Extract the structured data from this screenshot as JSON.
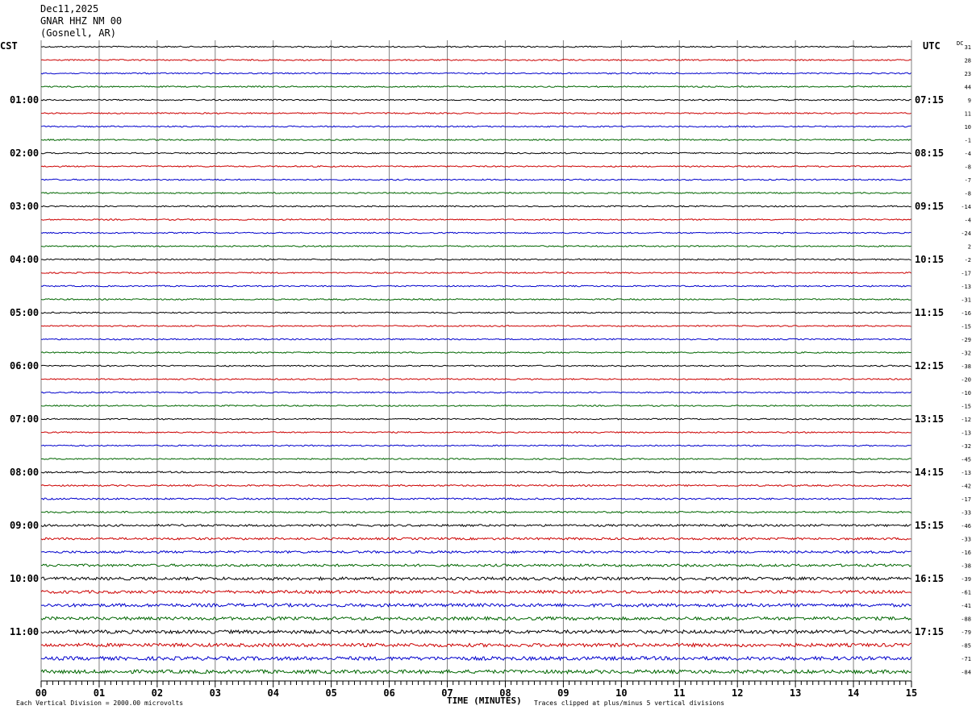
{
  "header": {
    "date": "Dec11,2025",
    "station": "GNAR HHZ NM 00",
    "location": "(Gosnell, AR)"
  },
  "left_zone": "CST",
  "right_zone": "UTC",
  "dc_label": "DC",
  "footer": {
    "scale_note": "Each Vertical Division = 2000.00 microvolts",
    "xlabel": "TIME (MINUTES)",
    "clip_note": "Traces clipped at plus/minus 5 vertical divisions"
  },
  "colors": {
    "cycle": [
      "#000000",
      "#cc0000",
      "#0000cc",
      "#006600"
    ],
    "grid": "#808080"
  },
  "chart_data": {
    "type": "line",
    "title": "Dec11,2025 GNAR HHZ NM 00 (Gosnell, AR)",
    "xlabel": "TIME (MINUTES)",
    "ylabel": "",
    "xlim": [
      0,
      15
    ],
    "x_ticks": [
      "00",
      "01",
      "02",
      "03",
      "04",
      "05",
      "06",
      "07",
      "08",
      "09",
      "10",
      "11",
      "12",
      "13",
      "14",
      "15"
    ],
    "row_minutes": 15,
    "num_rows": 48,
    "left_time_labels": [
      "01:00",
      "02:00",
      "03:00",
      "04:00",
      "05:00",
      "06:00",
      "07:00",
      "08:00",
      "09:00",
      "10:00",
      "11:00"
    ],
    "right_time_labels": [
      "07:15",
      "08:15",
      "09:15",
      "10:15",
      "11:15",
      "12:15",
      "13:15",
      "14:15",
      "15:15",
      "16:15",
      "17:15"
    ],
    "dc_offsets": [
      31,
      28,
      23,
      44,
      9,
      11,
      10,
      -1,
      -4,
      -8,
      -7,
      -8,
      -14,
      -4,
      -24,
      2,
      -2,
      -17,
      -13,
      -31,
      -16,
      -15,
      -29,
      -32,
      -38,
      -20,
      -10,
      -15,
      -12,
      -13,
      -32,
      -45,
      -13,
      -42,
      -17,
      -33,
      -46,
      -33,
      -16,
      -38,
      -39,
      -61,
      -41,
      -88,
      -79,
      -85,
      -71,
      -84
    ],
    "noise_level": [
      1,
      1,
      1,
      1,
      1,
      1,
      1,
      1,
      1,
      1,
      1,
      1,
      1,
      1,
      1,
      1,
      1,
      1,
      1,
      1,
      1,
      1,
      1,
      1,
      1,
      1,
      1,
      1,
      1,
      1,
      1,
      1,
      1.2,
      1.2,
      1.3,
      1.3,
      1.6,
      1.7,
      1.8,
      1.9,
      2.3,
      2.3,
      2.5,
      2.5,
      2.7,
      2.7,
      2.8,
      2.8
    ],
    "grid": true
  }
}
